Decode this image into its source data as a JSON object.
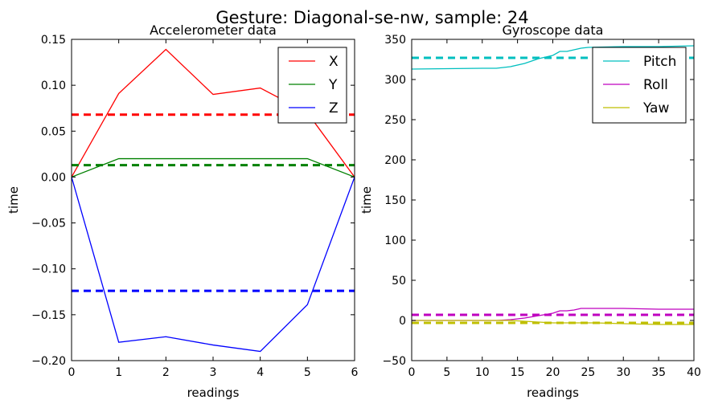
{
  "figure": {
    "suptitle": "Gesture: Diagonal-se-nw, sample: 24"
  },
  "chart_data": [
    {
      "type": "line",
      "title": "Accelerometer data",
      "xlabel": "readings",
      "ylabel": "time",
      "xlim": [
        0,
        6
      ],
      "ylim": [
        -0.2,
        0.15
      ],
      "xticks": [
        0,
        1,
        2,
        3,
        4,
        5,
        6
      ],
      "yticks": [
        -0.2,
        -0.15,
        -0.1,
        -0.05,
        0.0,
        0.05,
        0.1,
        0.15
      ],
      "ytick_labels": [
        "−0.20",
        "−0.15",
        "−0.10",
        "−0.05",
        "0.00",
        "0.05",
        "0.10",
        "0.15"
      ],
      "grid": false,
      "legend_position": "top-right",
      "x": [
        0,
        1,
        2,
        3,
        4,
        5,
        6
      ],
      "series": [
        {
          "name": "X",
          "color": "#ff0000",
          "values": [
            0.0,
            0.091,
            0.139,
            0.09,
            0.097,
            0.07,
            0.0
          ]
        },
        {
          "name": "Y",
          "color": "#008000",
          "values": [
            0.0,
            0.02,
            0.02,
            0.02,
            0.02,
            0.02,
            0.0
          ]
        },
        {
          "name": "Z",
          "color": "#0000ff",
          "values": [
            0.0,
            -0.18,
            -0.174,
            -0.183,
            -0.19,
            -0.139,
            0.0
          ]
        }
      ],
      "mean_lines": [
        {
          "color": "#ff0000",
          "value": 0.068
        },
        {
          "color": "#008000",
          "value": 0.013
        },
        {
          "color": "#0000ff",
          "value": -0.124
        }
      ]
    },
    {
      "type": "line",
      "title": "Gyroscope data",
      "xlabel": "readings",
      "ylabel": "time",
      "xlim": [
        0,
        40
      ],
      "ylim": [
        -50,
        350
      ],
      "xticks": [
        0,
        5,
        10,
        15,
        20,
        25,
        30,
        35,
        40
      ],
      "yticks": [
        -50,
        0,
        50,
        100,
        150,
        200,
        250,
        300,
        350
      ],
      "ytick_labels": [
        "−50",
        "0",
        "50",
        "100",
        "150",
        "200",
        "250",
        "300",
        "350"
      ],
      "grid": false,
      "legend_position": "top-right",
      "series": [
        {
          "name": "Pitch",
          "color": "#00bfbf",
          "x": [
            0,
            5,
            10,
            12,
            14,
            16,
            18,
            20,
            21,
            22,
            23,
            24,
            25,
            30,
            35,
            40
          ],
          "values": [
            313,
            313.5,
            314,
            314,
            316,
            320,
            326,
            330,
            335,
            335,
            337,
            339,
            340,
            341,
            341,
            342
          ]
        },
        {
          "name": "Roll",
          "color": "#bf00bf",
          "x": [
            0,
            5,
            10,
            12,
            14,
            16,
            18,
            20,
            21,
            22,
            23,
            24,
            25,
            30,
            35,
            40
          ],
          "values": [
            0,
            0,
            0,
            0,
            1,
            3,
            6,
            9,
            12,
            12,
            13,
            15,
            15,
            15,
            14,
            14
          ]
        },
        {
          "name": "Yaw",
          "color": "#bfbf00",
          "x": [
            0,
            5,
            10,
            12,
            14,
            16,
            18,
            20,
            22,
            24,
            26,
            30,
            35,
            40
          ],
          "values": [
            0,
            0,
            0,
            0,
            0,
            -1,
            -2,
            -3,
            -3,
            -3,
            -3,
            -4,
            -5,
            -5
          ]
        }
      ],
      "mean_lines": [
        {
          "color": "#00bfbf",
          "value": 327
        },
        {
          "color": "#bf00bf",
          "value": 7
        },
        {
          "color": "#bfbf00",
          "value": -3
        }
      ]
    }
  ]
}
